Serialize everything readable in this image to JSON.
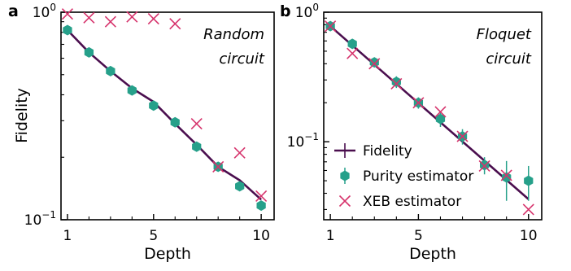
{
  "colors": {
    "fidelity": "#4a0e4e",
    "purity": "#26a08a",
    "xeb": "#d6336c"
  },
  "chart_data": [
    {
      "type": "line",
      "panel": "a",
      "annotation": [
        "Random",
        "circuit"
      ],
      "xlabel": "Depth",
      "ylabel": "Fidelity",
      "x_ticks": [
        1,
        5,
        10
      ],
      "xlim": [
        0.7,
        10.6
      ],
      "y_scale": "log",
      "ylim": [
        0.1,
        1.0
      ],
      "y_ticks": [
        {
          "value": 1.0,
          "base": "10",
          "exp": "0"
        },
        {
          "value": 0.1,
          "base": "10",
          "exp": "−1"
        }
      ],
      "series": [
        {
          "name": "Fidelity",
          "kind": "line",
          "x": [
            1,
            2,
            3,
            4,
            5,
            6,
            7,
            8,
            9,
            10
          ],
          "y": [
            0.82,
            0.64,
            0.52,
            0.43,
            0.37,
            0.29,
            0.23,
            0.18,
            0.155,
            0.125
          ]
        },
        {
          "name": "Purity estimator",
          "kind": "hexagon",
          "x": [
            1,
            2,
            3,
            4,
            5,
            6,
            7,
            8,
            9,
            10
          ],
          "y": [
            0.82,
            0.64,
            0.52,
            0.42,
            0.355,
            0.295,
            0.225,
            0.18,
            0.145,
            0.117
          ]
        },
        {
          "name": "XEB estimator",
          "kind": "cross",
          "x": [
            1,
            2,
            3,
            4,
            5,
            6,
            7,
            8,
            9,
            10
          ],
          "y": [
            0.98,
            0.94,
            0.9,
            0.95,
            0.93,
            0.88,
            0.29,
            0.18,
            0.21,
            0.13
          ]
        }
      ]
    },
    {
      "type": "line",
      "panel": "b",
      "annotation": [
        "Floquet",
        "circuit"
      ],
      "xlabel": "Depth",
      "ylabel": "",
      "x_ticks": [
        1,
        5,
        10
      ],
      "xlim": [
        0.7,
        10.6
      ],
      "y_scale": "log",
      "ylim": [
        0.025,
        1.0
      ],
      "y_ticks": [
        {
          "value": 1.0,
          "base": "10",
          "exp": "0"
        },
        {
          "value": 0.1,
          "base": "10",
          "exp": "−1"
        }
      ],
      "legend": {
        "position": "lower-left",
        "entries": [
          "Fidelity",
          "Purity estimator",
          "XEB estimator"
        ]
      },
      "series": [
        {
          "name": "Fidelity",
          "kind": "line",
          "x": [
            1,
            10
          ],
          "y": [
            0.78,
            0.036
          ]
        },
        {
          "name": "Purity estimator",
          "kind": "hexagon",
          "x": [
            1,
            2,
            3,
            4,
            5,
            6,
            7,
            8,
            9,
            10
          ],
          "y": [
            0.78,
            0.57,
            0.41,
            0.29,
            0.2,
            0.15,
            0.11,
            0.066,
            0.053,
            0.05
          ],
          "err": [
            0.05,
            0.04,
            0.03,
            0.03,
            0.02,
            0.02,
            0.015,
            0.01,
            0.018,
            0.015
          ]
        },
        {
          "name": "XEB estimator",
          "kind": "cross",
          "x": [
            1,
            2,
            3,
            4,
            5,
            6,
            7,
            8,
            9,
            10
          ],
          "y": [
            0.78,
            0.48,
            0.4,
            0.28,
            0.2,
            0.17,
            0.11,
            0.065,
            0.055,
            0.03
          ]
        }
      ]
    }
  ]
}
